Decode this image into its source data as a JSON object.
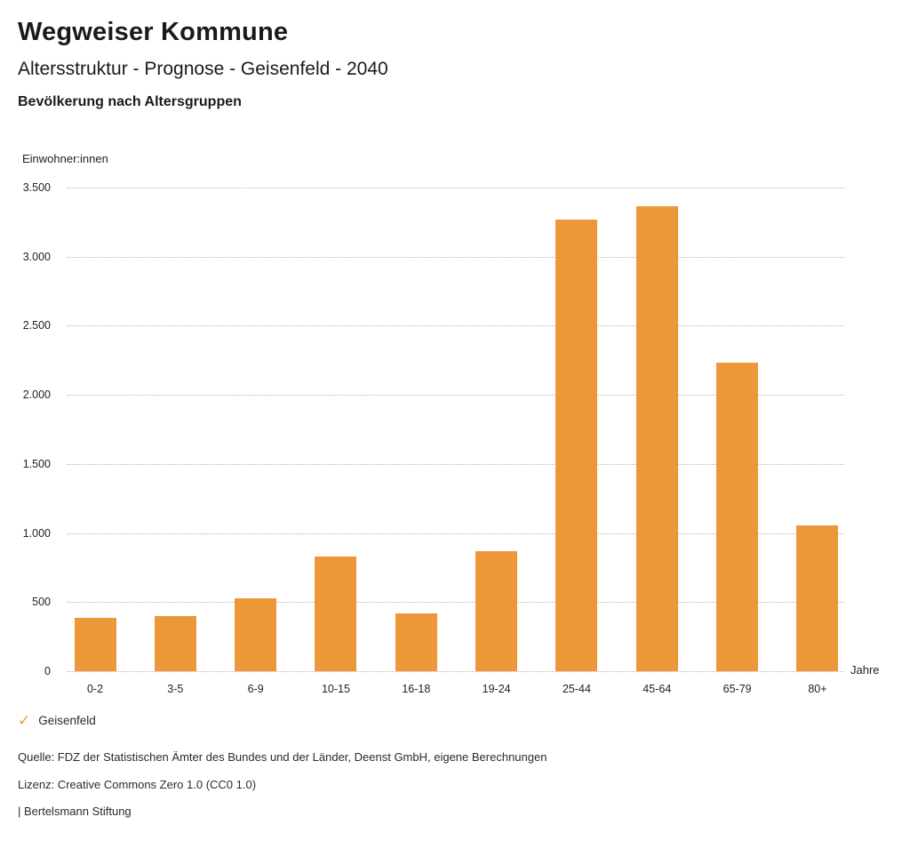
{
  "header": {
    "title": "Wegweiser Kommune",
    "subtitle": "Altersstruktur - Prognose - Geisenfeld - 2040",
    "section_title": "Bevölkerung nach Altersgruppen"
  },
  "chart_data": {
    "type": "bar",
    "title": "Bevölkerung nach Altersgruppen",
    "categories": [
      "0-2",
      "3-5",
      "6-9",
      "10-15",
      "16-18",
      "19-24",
      "25-44",
      "45-64",
      "65-79",
      "80+"
    ],
    "values": [
      385,
      400,
      530,
      830,
      420,
      870,
      3270,
      3365,
      2230,
      1055
    ],
    "series_name": "Geisenfeld",
    "xlabel": "Jahre",
    "ylabel": "Einwohner:innen",
    "ylim": [
      0,
      3500
    ],
    "ytick_step": 500,
    "ytick_labels": [
      "0",
      "500",
      "1.000",
      "1.500",
      "2.000",
      "2.500",
      "3.000",
      "3.500"
    ],
    "grid": "horizontal-dotted",
    "legend_position": "bottom-left",
    "bar_color": "#EC9838"
  },
  "legend": {
    "check_icon": "✓",
    "label": "Geisenfeld"
  },
  "footer": {
    "source": "Quelle: FDZ der Statistischen Ämter des Bundes und der Länder, Deenst GmbH, eigene Berechnungen",
    "license": "Lizenz: Creative Commons Zero 1.0 (CC0 1.0)",
    "attribution": "| Bertelsmann Stiftung"
  },
  "colors": {
    "accent": "#EC9838",
    "grid": "#B4B4B4",
    "text": "#1A1A1A"
  }
}
